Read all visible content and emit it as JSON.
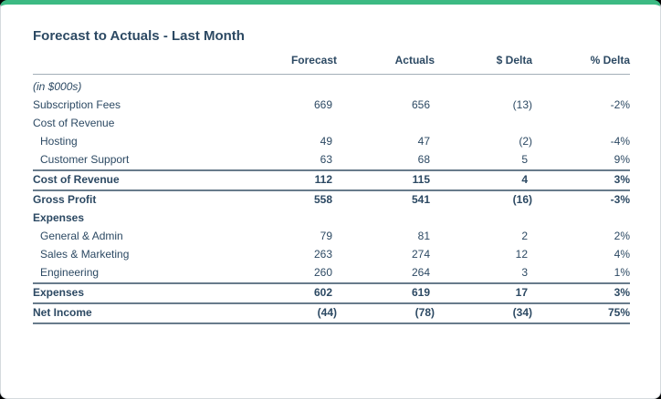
{
  "card": {
    "title": "Forecast to Actuals - Last Month",
    "accent_color": "#3cba83",
    "text_color": "#2c4963"
  },
  "table": {
    "columns": {
      "label": "",
      "forecast": "Forecast",
      "actuals": "Actuals",
      "dollar_delta": "$ Delta",
      "pct_delta": "% Delta"
    },
    "rows": [
      {
        "label": "(in $000s)",
        "forecast": "",
        "actuals": "",
        "dollar_delta": "",
        "pct_delta": ""
      },
      {
        "label": "Subscription Fees",
        "forecast": "669",
        "actuals": "656",
        "dollar_delta": "(13)",
        "pct_delta": "-2%"
      },
      {
        "label": "Cost of Revenue",
        "forecast": "",
        "actuals": "",
        "dollar_delta": "",
        "pct_delta": ""
      },
      {
        "label": "Hosting",
        "forecast": "49",
        "actuals": "47",
        "dollar_delta": "(2)",
        "pct_delta": "-4%"
      },
      {
        "label": "Customer Support",
        "forecast": "63",
        "actuals": "68",
        "dollar_delta": "5",
        "pct_delta": "9%"
      },
      {
        "label": "Cost of Revenue",
        "forecast": "112",
        "actuals": "115",
        "dollar_delta": "4",
        "pct_delta": "3%"
      },
      {
        "label": "Gross Profit",
        "forecast": "558",
        "actuals": "541",
        "dollar_delta": "(16)",
        "pct_delta": "-3%"
      },
      {
        "label": "Expenses",
        "forecast": "",
        "actuals": "",
        "dollar_delta": "",
        "pct_delta": ""
      },
      {
        "label": "General & Admin",
        "forecast": "79",
        "actuals": "81",
        "dollar_delta": "2",
        "pct_delta": "2%"
      },
      {
        "label": "Sales & Marketing",
        "forecast": "263",
        "actuals": "274",
        "dollar_delta": "12",
        "pct_delta": "4%"
      },
      {
        "label": "Engineering",
        "forecast": "260",
        "actuals": "264",
        "dollar_delta": "3",
        "pct_delta": "1%"
      },
      {
        "label": "Expenses",
        "forecast": "602",
        "actuals": "619",
        "dollar_delta": "17",
        "pct_delta": "3%"
      },
      {
        "label": "Net Income",
        "forecast": "(44)",
        "actuals": "(78)",
        "dollar_delta": "(34)",
        "pct_delta": "75%"
      }
    ]
  }
}
